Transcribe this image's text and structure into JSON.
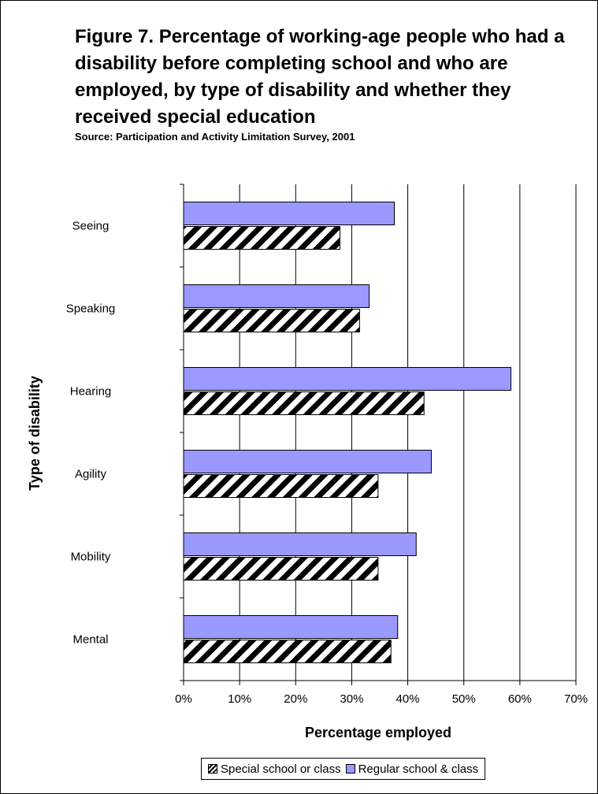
{
  "chart_data": {
    "type": "bar",
    "orientation": "horizontal",
    "title": "Figure 7. Percentage of working-age people who had a disability before completing school and who are employed, by type of disability and whether they received special education",
    "subtitle": "Source: Participation and Activity Limitation Survey, 2001",
    "xlabel": "Percentage employed",
    "ylabel": "Type of disability",
    "categories": [
      "Seeing",
      "Speaking",
      "Hearing",
      "Agility",
      "Mobility",
      "Mental"
    ],
    "series": [
      {
        "name": "Regular school & class",
        "color": "#9999ff",
        "pattern": "solid",
        "values": [
          37.6,
          33.1,
          58.4,
          44.2,
          41.5,
          38.2
        ]
      },
      {
        "name": "Special school or class",
        "color": "#000000",
        "pattern": "diagonal-hatch",
        "values": [
          27.9,
          31.4,
          42.9,
          34.7,
          34.7,
          37.0
        ]
      }
    ],
    "xlim": [
      0,
      70
    ],
    "xticks": [
      "0%",
      "10%",
      "20%",
      "30%",
      "40%",
      "50%",
      "60%",
      "70%"
    ],
    "grid": "vertical",
    "legend_position": "bottom",
    "legend_order": [
      "Special school or class",
      "Regular school & class"
    ]
  }
}
